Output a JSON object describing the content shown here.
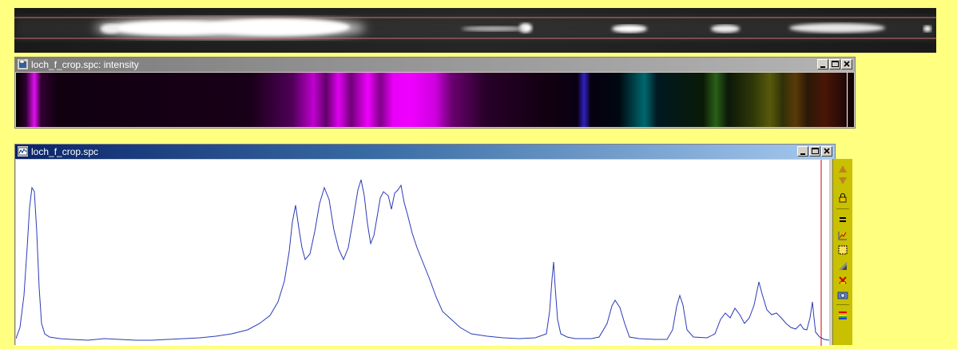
{
  "windows": {
    "intensity": {
      "title": "loch_f_crop.spc: intensity"
    },
    "profile": {
      "title": "loch_f_crop.spc"
    }
  },
  "window_buttons": [
    "minimize",
    "maximize",
    "close"
  ],
  "toolbar": {
    "icons": [
      "arrow-up-icon",
      "arrow-down-icon",
      "lock-icon",
      "equals-icon",
      "chart-settings-icon",
      "select-rect-icon",
      "gradient-icon",
      "delete-icon",
      "camera-icon",
      "rainbow-icon"
    ]
  },
  "colors": {
    "desktop": "#ffff80",
    "curve": "#2b3bb8",
    "cursor_line": "#cc0000",
    "spectrum_peak": "#d000e0"
  }
}
